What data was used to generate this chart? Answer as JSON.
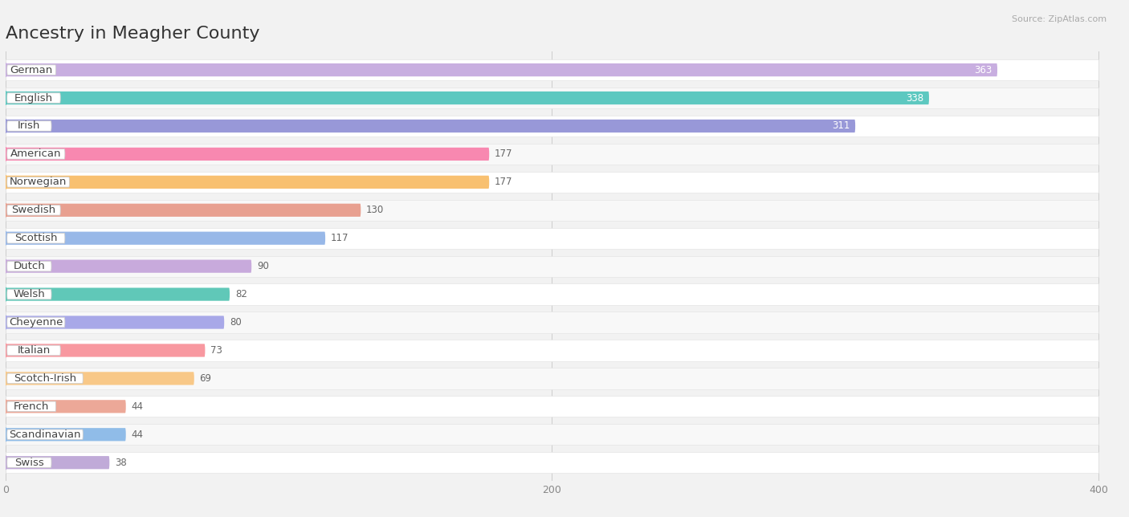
{
  "title": "Ancestry in Meagher County",
  "source": "Source: ZipAtlas.com",
  "categories": [
    "German",
    "English",
    "Irish",
    "American",
    "Norwegian",
    "Swedish",
    "Scottish",
    "Dutch",
    "Welsh",
    "Cheyenne",
    "Italian",
    "Scotch-Irish",
    "French",
    "Scandinavian",
    "Swiss"
  ],
  "values": [
    363,
    338,
    311,
    177,
    177,
    130,
    117,
    90,
    82,
    80,
    73,
    69,
    44,
    44,
    38
  ],
  "bar_colors": [
    "#c8aee0",
    "#5dc8c0",
    "#9898d8",
    "#f888b0",
    "#f8c070",
    "#e8a090",
    "#98b8e8",
    "#c8aadc",
    "#60c8b8",
    "#a8a8e8",
    "#f898a0",
    "#f8c888",
    "#eca898",
    "#90bce8",
    "#c0aad8"
  ],
  "xlim_max": 400,
  "background_color": "#f2f2f2",
  "row_bg_color": "#ffffff",
  "row_alt_color": "#f8f8f8",
  "title_fontsize": 16,
  "label_fontsize": 9.5,
  "value_fontsize": 8.5,
  "inside_value_threshold": 311,
  "xticks": [
    0,
    200,
    400
  ]
}
